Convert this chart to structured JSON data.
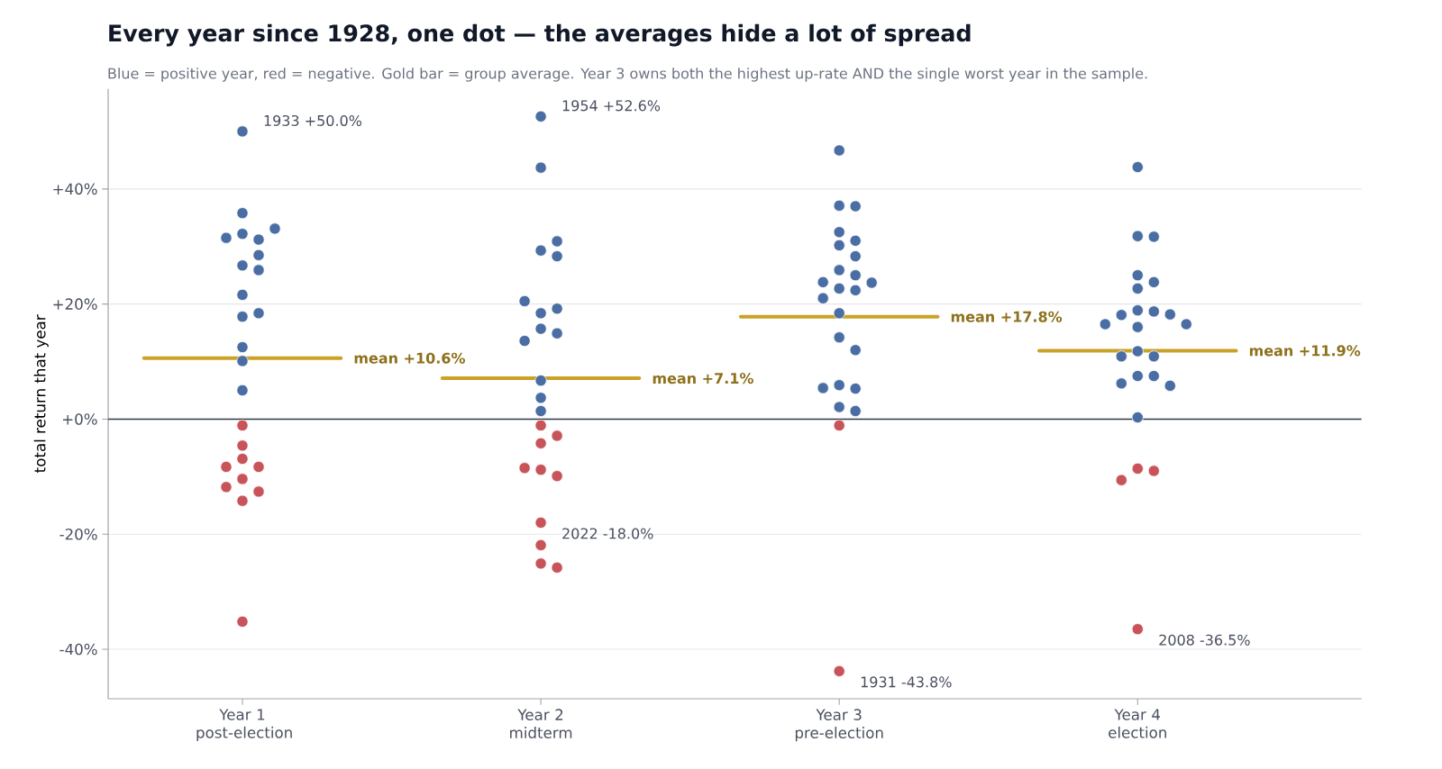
{
  "chart_data": {
    "type": "scatter",
    "title": "Every year since 1928, one dot — the averages hide a lot of spread",
    "subtitle": "Blue = positive year, red = negative. Gold bar = group average. Year 3 owns both the highest up-rate AND the single worst year in the sample.",
    "ylabel": "total return that year",
    "categories": [
      "Year 1 post-election",
      "Year 2 midterm",
      "Year 3 pre-election",
      "Year 4 election"
    ],
    "ylim": [
      -48.6,
      57.4
    ],
    "yticks": [
      {
        "value": -40,
        "label": "-40%"
      },
      {
        "value": -20,
        "label": "-20%"
      },
      {
        "value": 0,
        "label": "+0%"
      },
      {
        "value": 20,
        "label": "+20%"
      },
      {
        "value": 40,
        "label": "+40%"
      }
    ],
    "grid": "y",
    "marker": "circle",
    "ref_lines": [
      {
        "axis": "y",
        "value": 0,
        "color": "#2d3748"
      },
      {
        "axis": "y",
        "value": 10.6,
        "label": "mean +10.6%",
        "color": "#c9a227"
      },
      {
        "axis": "y",
        "value": 7.1,
        "label": "mean +7.1%",
        "color": "#c9a227"
      },
      {
        "axis": "y",
        "value": 17.8,
        "label": "mean +17.8%",
        "color": "#c9a227"
      },
      {
        "axis": "y",
        "value": 11.9,
        "label": "mean +11.9%",
        "color": "#c9a227"
      }
    ],
    "series": [
      {
        "color": "#4a6ea3",
        "x": [
          "Year 1 post-election",
          "Year 1 post-election",
          "Year 1 post-election",
          "Year 1 post-election",
          "Year 1 post-election",
          "Year 1 post-election",
          "Year 1 post-election",
          "Year 1 post-election",
          "Year 1 post-election",
          "Year 1 post-election",
          "Year 1 post-election",
          "Year 1 post-election",
          "Year 1 post-election",
          "Year 1 post-election",
          "Year 1 post-election",
          "Year 2 midterm",
          "Year 2 midterm",
          "Year 2 midterm",
          "Year 2 midterm",
          "Year 2 midterm",
          "Year 2 midterm",
          "Year 2 midterm",
          "Year 2 midterm",
          "Year 2 midterm",
          "Year 2 midterm",
          "Year 2 midterm",
          "Year 2 midterm",
          "Year 2 midterm",
          "Year 2 midterm",
          "Year 3 pre-election",
          "Year 3 pre-election",
          "Year 3 pre-election",
          "Year 3 pre-election",
          "Year 3 pre-election",
          "Year 3 pre-election",
          "Year 3 pre-election",
          "Year 3 pre-election",
          "Year 3 pre-election",
          "Year 3 pre-election",
          "Year 3 pre-election",
          "Year 3 pre-election",
          "Year 3 pre-election",
          "Year 3 pre-election",
          "Year 3 pre-election",
          "Year 3 pre-election",
          "Year 3 pre-election",
          "Year 3 pre-election",
          "Year 3 pre-election",
          "Year 3 pre-election",
          "Year 3 pre-election",
          "Year 3 pre-election",
          "Year 4 election",
          "Year 4 election",
          "Year 4 election",
          "Year 4 election",
          "Year 4 election",
          "Year 4 election",
          "Year 4 election",
          "Year 4 election",
          "Year 4 election",
          "Year 4 election",
          "Year 4 election",
          "Year 4 election",
          "Year 4 election",
          "Year 4 election",
          "Year 4 election",
          "Year 4 election",
          "Year 4 election",
          "Year 4 election",
          "Year 4 election",
          "Year 4 election",
          "Year 4 election"
        ],
        "values": [
          50.0,
          32.2,
          31.2,
          31.5,
          33.1,
          35.8,
          26.7,
          28.5,
          25.9,
          21.6,
          17.8,
          18.4,
          12.5,
          10.1,
          5.0,
          52.6,
          43.7,
          29.3,
          28.3,
          30.9,
          18.4,
          19.2,
          20.5,
          15.7,
          14.9,
          13.6,
          6.7,
          3.7,
          1.4,
          46.7,
          37.1,
          37.0,
          32.5,
          31.0,
          30.2,
          28.3,
          25.9,
          25.0,
          23.8,
          23.7,
          22.7,
          22.4,
          21.0,
          18.4,
          14.2,
          12.0,
          5.9,
          5.3,
          5.4,
          2.1,
          1.4,
          43.8,
          31.8,
          31.7,
          25.0,
          23.8,
          22.7,
          18.9,
          18.7,
          18.1,
          18.2,
          16.0,
          16.5,
          16.5,
          11.8,
          10.9,
          10.9,
          7.5,
          7.5,
          6.2,
          5.8,
          0.3
        ]
      },
      {
        "color": "#c8545a",
        "x": [
          "Year 1 post-election",
          "Year 1 post-election",
          "Year 1 post-election",
          "Year 1 post-election",
          "Year 1 post-election",
          "Year 1 post-election",
          "Year 1 post-election",
          "Year 1 post-election",
          "Year 1 post-election",
          "Year 1 post-election",
          "Year 2 midterm",
          "Year 2 midterm",
          "Year 2 midterm",
          "Year 2 midterm",
          "Year 2 midterm",
          "Year 2 midterm",
          "Year 2 midterm",
          "Year 2 midterm",
          "Year 2 midterm",
          "Year 2 midterm",
          "Year 3 pre-election",
          "Year 3 pre-election",
          "Year 4 election",
          "Year 4 election",
          "Year 4 election",
          "Year 4 election"
        ],
        "values": [
          -1.1,
          -4.6,
          -6.9,
          -8.3,
          -8.3,
          -10.4,
          -12.6,
          -11.8,
          -14.2,
          -35.2,
          -1.1,
          -2.9,
          -4.2,
          -8.8,
          -9.9,
          -8.5,
          -18.0,
          -21.9,
          -25.1,
          -25.8,
          -1.1,
          -43.8,
          -8.6,
          -9.0,
          -10.6,
          -36.5
        ]
      }
    ],
    "annotations": [
      {
        "text": "1933  +50.0%",
        "x": "Year 1 post-election",
        "y": 50.0
      },
      {
        "text": "1954  +52.6%",
        "x": "Year 2 midterm",
        "y": 52.6
      },
      {
        "text": "2022  -18.0%",
        "x": "Year 2 midterm",
        "y": -18.0
      },
      {
        "text": "1931  -43.8%",
        "x": "Year 3 pre-election",
        "y": -43.8
      },
      {
        "text": "2008  -36.5%",
        "x": "Year 4 election",
        "y": -36.5
      }
    ]
  }
}
